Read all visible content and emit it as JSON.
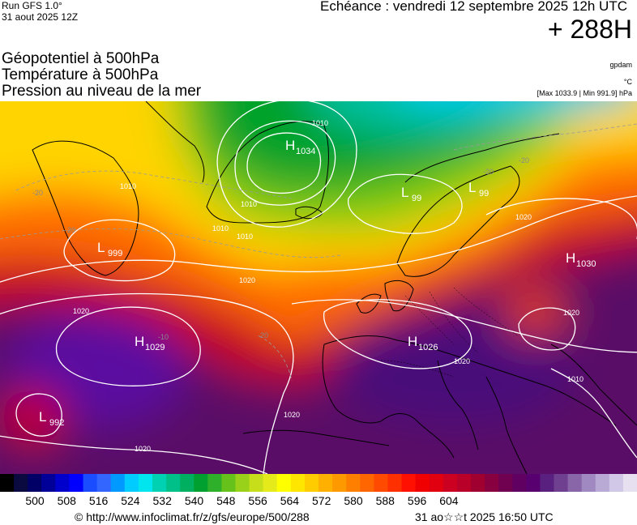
{
  "header": {
    "run_line1": "Run GFS 1.0°",
    "run_line2": "31 aout 2025 12Z",
    "echeance": "Echéance : vendredi 12 septembre 2025 12h UTC",
    "lead_time": "+ 288H"
  },
  "titles": {
    "line1": "Géopotentiel à 500hPa",
    "line2": "Température à 500hPa",
    "line3": "Pression au niveau de la mer"
  },
  "units": {
    "gpdam": "gpdam",
    "celsius": "°C",
    "maxmin": "[Max 1033.9 | Min 991.9] hPa"
  },
  "map": {
    "pressure_centers": [
      {
        "type": "H",
        "value": "1034",
        "region": "Greenland"
      },
      {
        "type": "L",
        "value": "99",
        "region": "Norwegian Sea"
      },
      {
        "type": "L",
        "value": "99",
        "region": "Scandinavia"
      },
      {
        "type": "H",
        "value": "1030",
        "region": "Russia"
      },
      {
        "type": "L",
        "value": "999",
        "region": "Labrador Sea"
      },
      {
        "type": "H",
        "value": "1029",
        "region": "Atlantic"
      },
      {
        "type": "H",
        "value": "1026",
        "region": "Western Europe"
      },
      {
        "type": "L",
        "value": "992",
        "region": "Azores"
      }
    ],
    "isobar_labels": [
      "1010",
      "1010",
      "1010",
      "1010",
      "1010",
      "1020",
      "1020",
      "1020",
      "1020",
      "1020",
      "1020",
      "1020",
      "1010"
    ],
    "temp_labels": [
      "-20",
      "-20",
      "-20",
      "-10",
      "-20",
      "-20"
    ]
  },
  "colorbar": {
    "ticks": [
      "500",
      "508",
      "516",
      "524",
      "532",
      "540",
      "548",
      "556",
      "564",
      "572",
      "580",
      "588",
      "596",
      "604"
    ],
    "colors": [
      "#000000",
      "#0a0a40",
      "#000066",
      "#000099",
      "#0000cc",
      "#0000ff",
      "#1a4dff",
      "#3366ff",
      "#0099ff",
      "#00ccff",
      "#00e5ee",
      "#00d1b2",
      "#00c08a",
      "#00b060",
      "#00a030",
      "#2fb02a",
      "#66c21a",
      "#99d11a",
      "#c6df1a",
      "#e5ea1a",
      "#ffff00",
      "#ffe600",
      "#ffcc00",
      "#ffb000",
      "#ff9900",
      "#ff8000",
      "#ff6600",
      "#ff4a00",
      "#ff3000",
      "#ff1000",
      "#f00000",
      "#e00010",
      "#cc0020",
      "#b80028",
      "#a00030",
      "#880040",
      "#700050",
      "#600060",
      "#580070",
      "#5a2080",
      "#704090",
      "#8866a8",
      "#a088c0",
      "#b8aad4",
      "#d0c8e6",
      "#e6e0f0"
    ]
  },
  "footer": {
    "url": "© http://www.infoclimat.fr/z/gfs/europe/500/288",
    "timestamp": "31 ao☆☆t 2025 16:50 UTC"
  }
}
